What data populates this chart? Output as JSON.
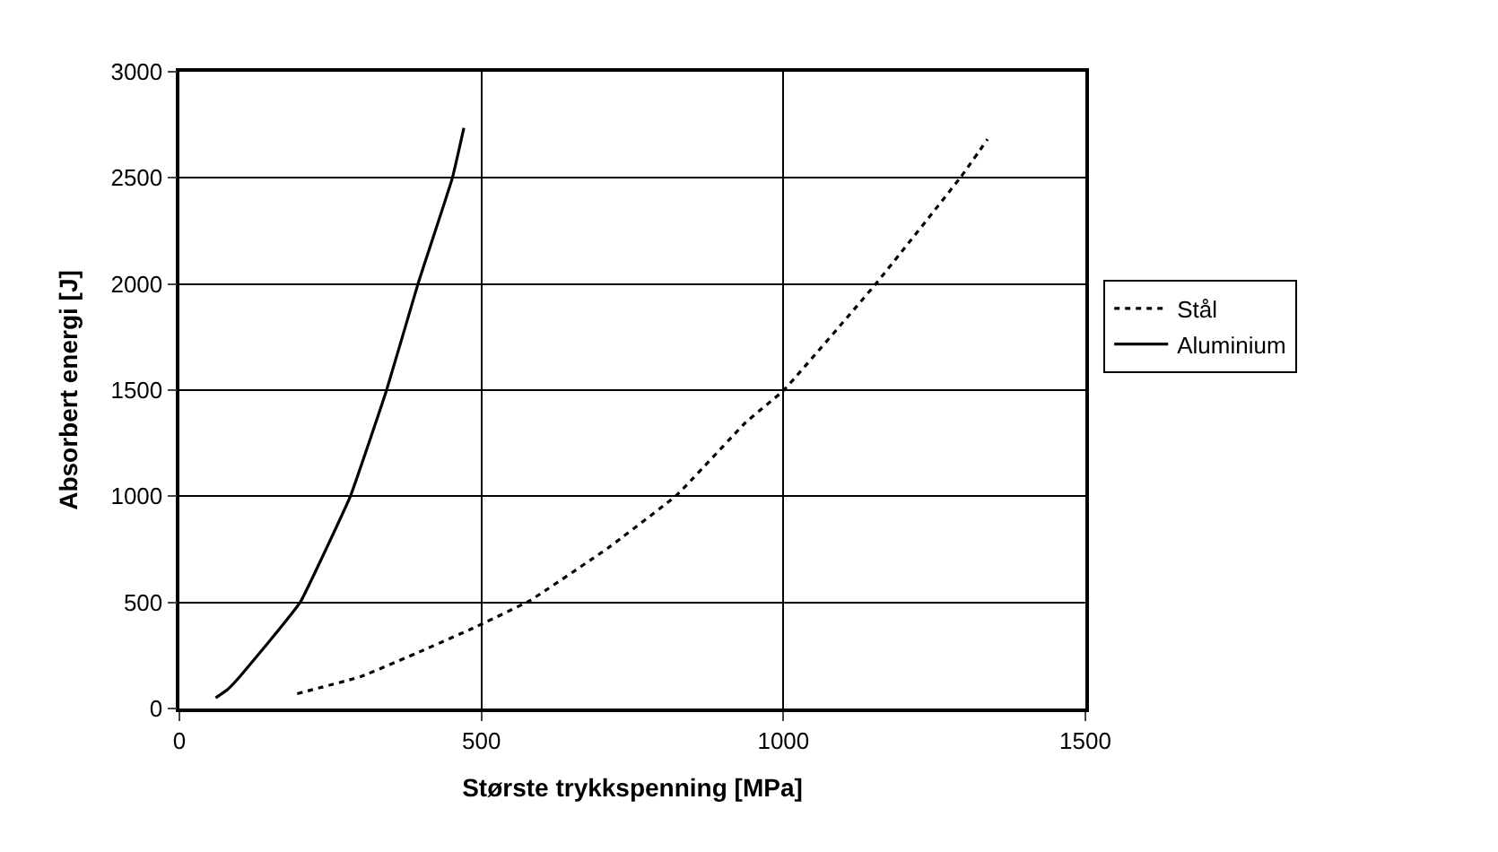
{
  "chart_data": {
    "type": "line",
    "xlabel": "Største trykkspenning [MPa]",
    "ylabel": "Absorbert energi [J]",
    "xlim": [
      0,
      1500
    ],
    "xticks": [
      0,
      500,
      1000,
      1500
    ],
    "ylim": [
      0,
      3000
    ],
    "yticks": [
      0,
      500,
      1000,
      1500,
      2000,
      2500,
      3000
    ],
    "grid": true,
    "legend": "right",
    "marker": "none",
    "series": [
      {
        "name": "Stål",
        "color": "#000000",
        "line_style": "dotted",
        "x": [
          195,
          300,
          400,
          485,
          580,
          710,
          824,
          938,
          1000,
          1152,
          1294,
          1338
        ],
        "values": [
          70,
          150,
          270,
          377,
          508,
          757,
          1007,
          1349,
          1498,
          1997,
          2505,
          2682
        ]
      },
      {
        "name": "Aluminium",
        "color": "#000000",
        "line_style": "solid",
        "x": [
          60,
          80,
          100,
          150,
          200,
          283,
          343,
          395,
          452,
          471
        ],
        "values": [
          50,
          90,
          150,
          320,
          500,
          1000,
          1500,
          2000,
          2500,
          2735
        ]
      }
    ]
  }
}
